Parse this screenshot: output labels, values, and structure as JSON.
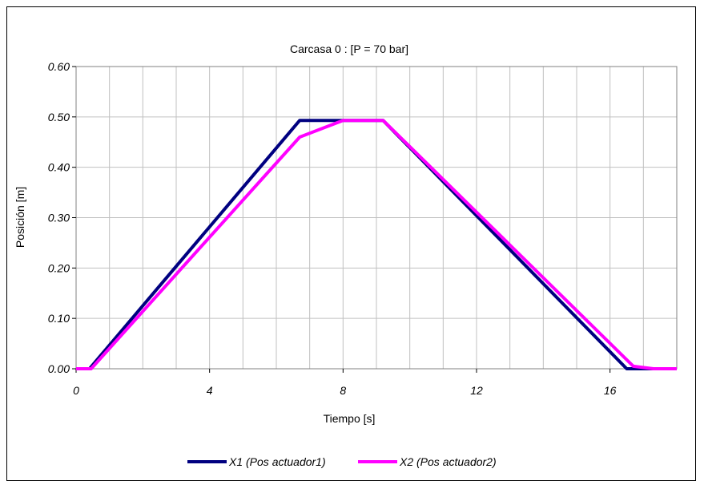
{
  "chart_data": {
    "type": "line",
    "title": "Carcasa 0 : [P = 70 bar]",
    "xlabel": "Tiempo [s]",
    "ylabel": "Posición [m]",
    "xlim": [
      0,
      18
    ],
    "ylim": [
      0,
      0.6
    ],
    "x_ticks": [
      0,
      4,
      8,
      12,
      16
    ],
    "x_tick_labels": [
      "0",
      "4",
      "8",
      "12",
      "16"
    ],
    "x_gridlines": [
      0,
      1,
      2,
      3,
      4,
      5,
      6,
      7,
      8,
      9,
      10,
      11,
      12,
      13,
      14,
      15,
      16,
      17,
      18
    ],
    "y_ticks": [
      0,
      0.1,
      0.2,
      0.3,
      0.4,
      0.5,
      0.6
    ],
    "y_tick_labels": [
      "0.00",
      "0.10",
      "0.20",
      "0.30",
      "0.40",
      "0.50",
      "0.60"
    ],
    "grid": true,
    "legend_position": "bottom",
    "series": [
      {
        "name": "X1 (Pos actuador1)",
        "color": "#000080",
        "points": [
          [
            0,
            0
          ],
          [
            0.4,
            0
          ],
          [
            6.7,
            0.493
          ],
          [
            9.2,
            0.493
          ],
          [
            16.5,
            0
          ],
          [
            18,
            0
          ]
        ]
      },
      {
        "name": "X2 (Pos actuador2)",
        "color": "#ff00ff",
        "points": [
          [
            0,
            0
          ],
          [
            0.45,
            0
          ],
          [
            6.7,
            0.46
          ],
          [
            8.0,
            0.493
          ],
          [
            9.2,
            0.493
          ],
          [
            16.7,
            0.005
          ],
          [
            17.3,
            0
          ],
          [
            18,
            0
          ]
        ]
      }
    ]
  }
}
